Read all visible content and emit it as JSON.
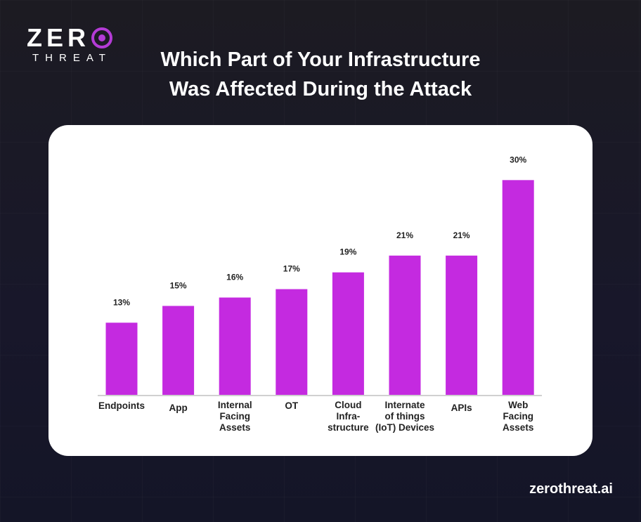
{
  "brand": {
    "logo_top": "ZERO",
    "logo_bottom": "THREAT",
    "accent": "#b43bd6"
  },
  "title_lines": [
    "Which Part of Your Infrastructure",
    "Was Affected During the Attack"
  ],
  "footer": "zerothreat.ai",
  "chart_data": {
    "type": "bar",
    "title": "Which Part of Your Infrastructure Was Affected During the Attack",
    "categories": [
      [
        "Endpoints"
      ],
      [
        "App"
      ],
      [
        "Internal",
        "Facing",
        "Assets"
      ],
      [
        "OT"
      ],
      [
        "Cloud",
        "Infra-",
        "structure"
      ],
      [
        "Internate",
        "of things",
        "(IoT) Devices"
      ],
      [
        "APIs"
      ],
      [
        "Web",
        "Facing",
        "Assets"
      ]
    ],
    "values": [
      13,
      15,
      16,
      17,
      19,
      21,
      21,
      30
    ],
    "value_labels": [
      "13%",
      "15%",
      "16%",
      "17%",
      "19%",
      "21%",
      "21%",
      "30%"
    ],
    "bar_color": "#c42ae0",
    "grid": false,
    "legend": "none"
  }
}
